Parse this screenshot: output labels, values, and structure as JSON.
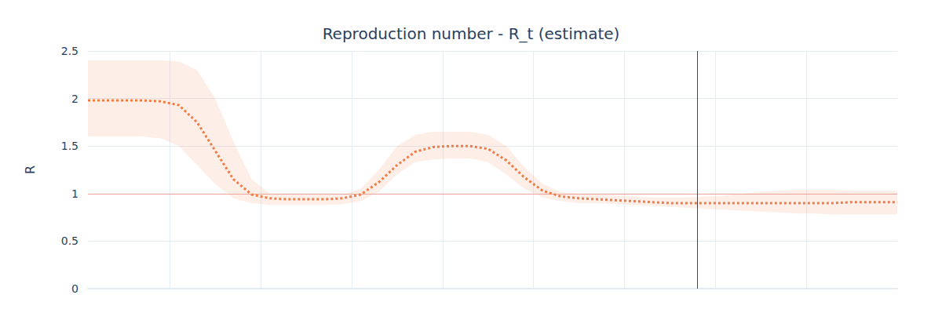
{
  "chart_data": {
    "type": "line",
    "title": "Reproduction number - R_t (estimate)",
    "y_label": "R",
    "x": [
      0,
      2,
      4,
      6,
      8,
      10,
      12,
      14,
      16,
      18,
      20,
      22,
      24,
      26,
      28,
      30,
      32,
      34,
      36,
      38,
      40,
      42,
      44,
      46,
      48,
      50,
      52,
      54,
      56,
      58,
      60,
      62,
      64,
      66,
      68,
      70,
      72,
      74,
      76,
      78,
      80,
      82,
      84,
      86,
      88,
      89
    ],
    "values": [
      1.98,
      1.98,
      1.98,
      1.98,
      1.97,
      1.93,
      1.75,
      1.45,
      1.15,
      0.99,
      0.95,
      0.94,
      0.94,
      0.94,
      0.95,
      0.99,
      1.12,
      1.3,
      1.44,
      1.49,
      1.5,
      1.5,
      1.47,
      1.35,
      1.17,
      1.03,
      0.97,
      0.95,
      0.94,
      0.93,
      0.92,
      0.91,
      0.9,
      0.9,
      0.9,
      0.9,
      0.9,
      0.9,
      0.9,
      0.9,
      0.9,
      0.9,
      0.91,
      0.91,
      0.91,
      0.91
    ],
    "upper": [
      2.4,
      2.4,
      2.4,
      2.4,
      2.4,
      2.39,
      2.3,
      2.0,
      1.55,
      1.15,
      1.0,
      0.99,
      0.99,
      0.99,
      0.99,
      1.05,
      1.25,
      1.5,
      1.62,
      1.65,
      1.65,
      1.65,
      1.62,
      1.5,
      1.28,
      1.1,
      1.02,
      1.0,
      0.99,
      0.98,
      0.97,
      0.96,
      0.96,
      0.96,
      0.97,
      0.98,
      1.0,
      1.02,
      1.03,
      1.04,
      1.04,
      1.04,
      1.03,
      1.03,
      1.03,
      1.03
    ],
    "lower": [
      1.6,
      1.6,
      1.6,
      1.6,
      1.58,
      1.5,
      1.3,
      1.1,
      0.95,
      0.9,
      0.88,
      0.88,
      0.88,
      0.88,
      0.89,
      0.92,
      1.02,
      1.2,
      1.33,
      1.36,
      1.37,
      1.37,
      1.33,
      1.2,
      1.05,
      0.96,
      0.92,
      0.9,
      0.9,
      0.89,
      0.88,
      0.87,
      0.86,
      0.85,
      0.84,
      0.83,
      0.82,
      0.81,
      0.8,
      0.79,
      0.79,
      0.78,
      0.78,
      0.78,
      0.78,
      0.78
    ],
    "color": "#ef7d45",
    "line_style": "dotted",
    "reference_line": 1,
    "vertical_line": 67,
    "xlim": [
      0,
      89
    ],
    "xticks": [
      9,
      19,
      29,
      39,
      49,
      59,
      69,
      79
    ],
    "ylim": [
      0,
      2.5
    ],
    "yticks": [
      0,
      0.5,
      1,
      1.5,
      2,
      2.5
    ],
    "grid": true,
    "tick_labels": "y"
  }
}
